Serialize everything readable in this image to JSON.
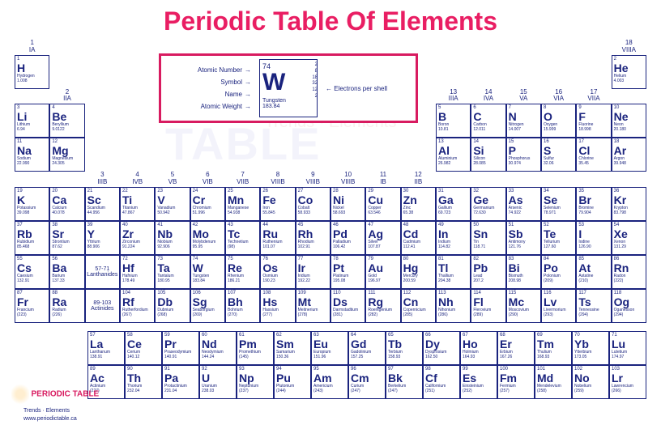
{
  "title": "Periodic Table Of Elements",
  "title_color": "#e91e63",
  "watermark": "PERIODIC TABLE",
  "watermark_sub": "Trends · Elements",
  "legend": {
    "labels": {
      "atomic_number": "Atomic Number",
      "symbol": "Symbol",
      "name": "Name",
      "atomic_weight": "Atomic Weight",
      "shells": "Electrons per shell"
    },
    "cell": {
      "num": "74",
      "sym": "W",
      "name": "Tungsten",
      "wt": "183.84",
      "shells": [
        "2",
        "8",
        "18",
        "32",
        "12",
        "2"
      ]
    },
    "border_color": "#d81b60"
  },
  "groups": [
    {
      "n": "1",
      "r": "IA"
    },
    {
      "n": "2",
      "r": "IIA"
    },
    {
      "n": "3",
      "r": "IIIB"
    },
    {
      "n": "4",
      "r": "IVB"
    },
    {
      "n": "5",
      "r": "VB"
    },
    {
      "n": "6",
      "r": "VIB"
    },
    {
      "n": "7",
      "r": "VIIB"
    },
    {
      "n": "8",
      "r": "VIIIB"
    },
    {
      "n": "9",
      "r": "VIIIB"
    },
    {
      "n": "10",
      "r": "VIIIB"
    },
    {
      "n": "11",
      "r": "IB"
    },
    {
      "n": "12",
      "r": "IIB"
    },
    {
      "n": "13",
      "r": "IIIA"
    },
    {
      "n": "14",
      "r": "IVA"
    },
    {
      "n": "15",
      "r": "VA"
    },
    {
      "n": "16",
      "r": "VIA"
    },
    {
      "n": "17",
      "r": "VIIA"
    },
    {
      "n": "18",
      "r": "VIIIA"
    }
  ],
  "placeholders": {
    "lan": "57-71\nLanthanides",
    "act": "89-103\nActinides"
  },
  "elements": [
    [
      {
        "n": "1",
        "s": "H",
        "nm": "Hydrogen",
        "w": "1.008"
      },
      null,
      null,
      null,
      null,
      null,
      null,
      null,
      null,
      null,
      null,
      null,
      null,
      null,
      null,
      null,
      null,
      {
        "n": "2",
        "s": "He",
        "nm": "Helium",
        "w": "4.003"
      }
    ],
    [
      {
        "n": "3",
        "s": "Li",
        "nm": "Lithium",
        "w": "6.94"
      },
      {
        "n": "4",
        "s": "Be",
        "nm": "Beryllium",
        "w": "9.0122"
      },
      null,
      null,
      null,
      null,
      null,
      null,
      null,
      null,
      null,
      null,
      {
        "n": "5",
        "s": "B",
        "nm": "Boron",
        "w": "10.81"
      },
      {
        "n": "6",
        "s": "C",
        "nm": "Carbon",
        "w": "12.011"
      },
      {
        "n": "7",
        "s": "N",
        "nm": "Nitrogen",
        "w": "14.007"
      },
      {
        "n": "8",
        "s": "O",
        "nm": "Oxygen",
        "w": "15.999"
      },
      {
        "n": "9",
        "s": "F",
        "nm": "Fluorine",
        "w": "18.998"
      },
      {
        "n": "10",
        "s": "Ne",
        "nm": "Neon",
        "w": "20.180"
      }
    ],
    [
      {
        "n": "11",
        "s": "Na",
        "nm": "Sodium",
        "w": "22.990"
      },
      {
        "n": "12",
        "s": "Mg",
        "nm": "Magnesium",
        "w": "24.305"
      },
      null,
      null,
      null,
      null,
      null,
      null,
      null,
      null,
      null,
      null,
      {
        "n": "13",
        "s": "Al",
        "nm": "Aluminium",
        "w": "26.982"
      },
      {
        "n": "14",
        "s": "Si",
        "nm": "Silicon",
        "w": "28.085"
      },
      {
        "n": "15",
        "s": "P",
        "nm": "Phosphorus",
        "w": "30.974"
      },
      {
        "n": "16",
        "s": "S",
        "nm": "Sulfur",
        "w": "32.06"
      },
      {
        "n": "17",
        "s": "Cl",
        "nm": "Chlorine",
        "w": "35.45"
      },
      {
        "n": "18",
        "s": "Ar",
        "nm": "Argon",
        "w": "39.948"
      }
    ],
    [
      {
        "n": "19",
        "s": "K",
        "nm": "Potassium",
        "w": "39.098"
      },
      {
        "n": "20",
        "s": "Ca",
        "nm": "Calcium",
        "w": "40.078"
      },
      {
        "n": "21",
        "s": "Sc",
        "nm": "Scandium",
        "w": "44.956"
      },
      {
        "n": "22",
        "s": "Ti",
        "nm": "Titanium",
        "w": "47.867"
      },
      {
        "n": "23",
        "s": "V",
        "nm": "Vanadium",
        "w": "50.942"
      },
      {
        "n": "24",
        "s": "Cr",
        "nm": "Chromium",
        "w": "51.996"
      },
      {
        "n": "25",
        "s": "Mn",
        "nm": "Manganese",
        "w": "54.938"
      },
      {
        "n": "26",
        "s": "Fe",
        "nm": "Iron",
        "w": "55.845"
      },
      {
        "n": "27",
        "s": "Co",
        "nm": "Cobalt",
        "w": "58.933"
      },
      {
        "n": "28",
        "s": "Ni",
        "nm": "Nickel",
        "w": "58.693"
      },
      {
        "n": "29",
        "s": "Cu",
        "nm": "Copper",
        "w": "63.546"
      },
      {
        "n": "30",
        "s": "Zn",
        "nm": "Zinc",
        "w": "65.38"
      },
      {
        "n": "31",
        "s": "Ga",
        "nm": "Gallium",
        "w": "69.723"
      },
      {
        "n": "32",
        "s": "Ge",
        "nm": "Germanium",
        "w": "72.630"
      },
      {
        "n": "33",
        "s": "As",
        "nm": "Arsenic",
        "w": "74.922"
      },
      {
        "n": "34",
        "s": "Se",
        "nm": "Selenium",
        "w": "78.971"
      },
      {
        "n": "35",
        "s": "Br",
        "nm": "Bromine",
        "w": "79.904"
      },
      {
        "n": "36",
        "s": "Kr",
        "nm": "Krypton",
        "w": "83.798"
      }
    ],
    [
      {
        "n": "37",
        "s": "Rb",
        "nm": "Rubidium",
        "w": "85.468"
      },
      {
        "n": "38",
        "s": "Sr",
        "nm": "Strontium",
        "w": "87.62"
      },
      {
        "n": "39",
        "s": "Y",
        "nm": "Yttrium",
        "w": "88.906"
      },
      {
        "n": "40",
        "s": "Zr",
        "nm": "Zirconium",
        "w": "91.224"
      },
      {
        "n": "41",
        "s": "Nb",
        "nm": "Niobium",
        "w": "92.906"
      },
      {
        "n": "42",
        "s": "Mo",
        "nm": "Molybdenum",
        "w": "95.95"
      },
      {
        "n": "43",
        "s": "Tc",
        "nm": "Technetium",
        "w": "(98)"
      },
      {
        "n": "44",
        "s": "Ru",
        "nm": "Ruthenium",
        "w": "101.07"
      },
      {
        "n": "45",
        "s": "Rh",
        "nm": "Rhodium",
        "w": "102.91"
      },
      {
        "n": "46",
        "s": "Pd",
        "nm": "Palladium",
        "w": "106.42"
      },
      {
        "n": "47",
        "s": "Ag",
        "nm": "Silver",
        "w": "107.87"
      },
      {
        "n": "48",
        "s": "Cd",
        "nm": "Cadmium",
        "w": "112.41"
      },
      {
        "n": "49",
        "s": "In",
        "nm": "Indium",
        "w": "114.82"
      },
      {
        "n": "50",
        "s": "Sn",
        "nm": "Tin",
        "w": "118.71"
      },
      {
        "n": "51",
        "s": "Sb",
        "nm": "Antimony",
        "w": "121.76"
      },
      {
        "n": "52",
        "s": "Te",
        "nm": "Tellurium",
        "w": "127.60"
      },
      {
        "n": "53",
        "s": "I",
        "nm": "Iodine",
        "w": "126.90"
      },
      {
        "n": "54",
        "s": "Xe",
        "nm": "Xenon",
        "w": "131.29"
      }
    ],
    [
      {
        "n": "55",
        "s": "Cs",
        "nm": "Caesium",
        "w": "132.91"
      },
      {
        "n": "56",
        "s": "Ba",
        "nm": "Barium",
        "w": "137.33"
      },
      "lan",
      {
        "n": "72",
        "s": "Hf",
        "nm": "Hafnium",
        "w": "178.49"
      },
      {
        "n": "73",
        "s": "Ta",
        "nm": "Tantalum",
        "w": "180.95"
      },
      {
        "n": "74",
        "s": "W",
        "nm": "Tungsten",
        "w": "183.84"
      },
      {
        "n": "75",
        "s": "Re",
        "nm": "Rhenium",
        "w": "186.21"
      },
      {
        "n": "76",
        "s": "Os",
        "nm": "Osmium",
        "w": "190.23"
      },
      {
        "n": "77",
        "s": "Ir",
        "nm": "Iridium",
        "w": "192.22"
      },
      {
        "n": "78",
        "s": "Pt",
        "nm": "Platinum",
        "w": "195.08"
      },
      {
        "n": "79",
        "s": "Au",
        "nm": "Gold",
        "w": "196.97"
      },
      {
        "n": "80",
        "s": "Hg",
        "nm": "Mercury",
        "w": "200.59"
      },
      {
        "n": "81",
        "s": "Tl",
        "nm": "Thallium",
        "w": "204.38"
      },
      {
        "n": "82",
        "s": "Pb",
        "nm": "Lead",
        "w": "207.2"
      },
      {
        "n": "83",
        "s": "Bi",
        "nm": "Bismuth",
        "w": "208.98"
      },
      {
        "n": "84",
        "s": "Po",
        "nm": "Polonium",
        "w": "(209)"
      },
      {
        "n": "85",
        "s": "At",
        "nm": "Astatine",
        "w": "(210)"
      },
      {
        "n": "86",
        "s": "Rn",
        "nm": "Radon",
        "w": "(222)"
      }
    ],
    [
      {
        "n": "87",
        "s": "Fr",
        "nm": "Francium",
        "w": "(223)"
      },
      {
        "n": "88",
        "s": "Ra",
        "nm": "Radium",
        "w": "(226)"
      },
      "act",
      {
        "n": "104",
        "s": "Rf",
        "nm": "Rutherfordium",
        "w": "(267)"
      },
      {
        "n": "105",
        "s": "Db",
        "nm": "Dubnium",
        "w": "(268)"
      },
      {
        "n": "106",
        "s": "Sg",
        "nm": "Seaborgium",
        "w": "(269)"
      },
      {
        "n": "107",
        "s": "Bh",
        "nm": "Bohrium",
        "w": "(270)"
      },
      {
        "n": "108",
        "s": "Hs",
        "nm": "Hassium",
        "w": "(277)"
      },
      {
        "n": "109",
        "s": "Mt",
        "nm": "Meitnerium",
        "w": "(278)"
      },
      {
        "n": "110",
        "s": "Ds",
        "nm": "Darmstadtium",
        "w": "(281)"
      },
      {
        "n": "111",
        "s": "Rg",
        "nm": "Roentgenium",
        "w": "(282)"
      },
      {
        "n": "112",
        "s": "Cn",
        "nm": "Copernicium",
        "w": "(285)"
      },
      {
        "n": "113",
        "s": "Nh",
        "nm": "Nihonium",
        "w": "(286)"
      },
      {
        "n": "114",
        "s": "Fl",
        "nm": "Flerovium",
        "w": "(289)"
      },
      {
        "n": "115",
        "s": "Mc",
        "nm": "Moscovium",
        "w": "(290)"
      },
      {
        "n": "116",
        "s": "Lv",
        "nm": "Livermorium",
        "w": "(293)"
      },
      {
        "n": "117",
        "s": "Ts",
        "nm": "Tennessine",
        "w": "(294)"
      },
      {
        "n": "118",
        "s": "Og",
        "nm": "Oganesson",
        "w": "(294)"
      }
    ]
  ],
  "fblock": [
    [
      {
        "n": "57",
        "s": "La",
        "nm": "Lanthanum",
        "w": "138.91"
      },
      {
        "n": "58",
        "s": "Ce",
        "nm": "Cerium",
        "w": "140.12"
      },
      {
        "n": "59",
        "s": "Pr",
        "nm": "Praseodymium",
        "w": "140.91"
      },
      {
        "n": "60",
        "s": "Nd",
        "nm": "Neodymium",
        "w": "144.24"
      },
      {
        "n": "61",
        "s": "Pm",
        "nm": "Promethium",
        "w": "(145)"
      },
      {
        "n": "62",
        "s": "Sm",
        "nm": "Samarium",
        "w": "150.36"
      },
      {
        "n": "63",
        "s": "Eu",
        "nm": "Europium",
        "w": "151.96"
      },
      {
        "n": "64",
        "s": "Gd",
        "nm": "Gadolinium",
        "w": "157.25"
      },
      {
        "n": "65",
        "s": "Tb",
        "nm": "Terbium",
        "w": "158.93"
      },
      {
        "n": "66",
        "s": "Dy",
        "nm": "Dysprosium",
        "w": "162.50"
      },
      {
        "n": "67",
        "s": "Ho",
        "nm": "Holmium",
        "w": "164.93"
      },
      {
        "n": "68",
        "s": "Er",
        "nm": "Erbium",
        "w": "167.26"
      },
      {
        "n": "69",
        "s": "Tm",
        "nm": "Thulium",
        "w": "168.93"
      },
      {
        "n": "70",
        "s": "Yb",
        "nm": "Ytterbium",
        "w": "173.05"
      },
      {
        "n": "71",
        "s": "Lu",
        "nm": "Lutetium",
        "w": "174.97"
      }
    ],
    [
      {
        "n": "89",
        "s": "Ac",
        "nm": "Actinium",
        "w": "(227)"
      },
      {
        "n": "90",
        "s": "Th",
        "nm": "Thorium",
        "w": "232.04"
      },
      {
        "n": "91",
        "s": "Pa",
        "nm": "Protactinium",
        "w": "231.04"
      },
      {
        "n": "92",
        "s": "U",
        "nm": "Uranium",
        "w": "238.03"
      },
      {
        "n": "93",
        "s": "Np",
        "nm": "Neptunium",
        "w": "(237)"
      },
      {
        "n": "94",
        "s": "Pu",
        "nm": "Plutonium",
        "w": "(244)"
      },
      {
        "n": "95",
        "s": "Am",
        "nm": "Americium",
        "w": "(243)"
      },
      {
        "n": "96",
        "s": "Cm",
        "nm": "Curium",
        "w": "(247)"
      },
      {
        "n": "97",
        "s": "Bk",
        "nm": "Berkelium",
        "w": "(247)"
      },
      {
        "n": "98",
        "s": "Cf",
        "nm": "Californium",
        "w": "(251)"
      },
      {
        "n": "99",
        "s": "Es",
        "nm": "Einsteinium",
        "w": "(252)"
      },
      {
        "n": "100",
        "s": "Fm",
        "nm": "Fermium",
        "w": "(257)"
      },
      {
        "n": "101",
        "s": "Md",
        "nm": "Mendelevium",
        "w": "(258)"
      },
      {
        "n": "102",
        "s": "No",
        "nm": "Nobelium",
        "w": "(259)"
      },
      {
        "n": "103",
        "s": "Lr",
        "nm": "Lawrencium",
        "w": "(266)"
      }
    ]
  ],
  "logo": {
    "title": "PERIODIC TABLE",
    "sub": "Trends · Elements",
    "url": "www.periodictable.ca"
  }
}
